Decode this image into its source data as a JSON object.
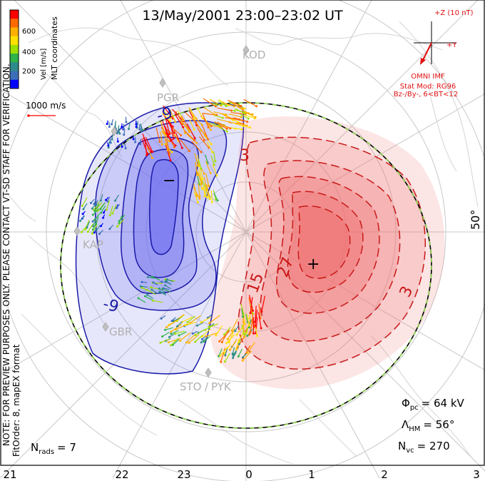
{
  "title": "13/May/2001 23:00–23:02 UT",
  "colorbar": {
    "label": "Vel [m/s]",
    "ticks": [
      "600",
      "400",
      "200"
    ],
    "colors": [
      "#ff0000",
      "#ff6a00",
      "#ffb000",
      "#ffe000",
      "#9ee000",
      "#2fb34a",
      "#2e8a8a",
      "#3d6fb8",
      "#0000ff"
    ]
  },
  "coordinate_label": "MLT coordinates",
  "scale_label": "1000 m/s",
  "side_note_1": "NOTE: FOR PREVIEW PURPOSES ONLY. PLEASE CONTACT VT-SD STAFF FOR VERIFICATION.",
  "side_note_2": "FitOrder: 8, mapEX format",
  "imf": {
    "z_label": "+Z (10 nT)",
    "y_label": "+Y",
    "source": "OMNI IMF",
    "model_1": "Stat Mod: RG96",
    "model_2": "Bz-/By-, 6<BT<12"
  },
  "stations": [
    {
      "name": "KOD"
    },
    {
      "name": "PGR"
    },
    {
      "name": "KAP"
    },
    {
      "name": "GBR"
    },
    {
      "name": "STO"
    },
    {
      "name": "PYK"
    }
  ],
  "contour_labels": {
    "neg_outer": "-9",
    "neg_lower": "-9",
    "neg_minus": "−",
    "pos_3a": "3",
    "pos_3b": "3",
    "pos_15": "15",
    "pos_27": "27",
    "pos_plus": "+"
  },
  "latitude_label": "50°",
  "stats": {
    "phi_label": "Φ",
    "phi_sub": "pc",
    "phi_value": "= 64 kV",
    "lambda_label": "Λ",
    "lambda_sub": "HM",
    "lambda_value": "= 56°",
    "nvc_label": "N",
    "nvc_sub": "vc",
    "nvc_value": "= 270",
    "nrads_label": "N",
    "nrads_sub": "rads",
    "nrads_value": "= 7"
  },
  "mlt_axis": [
    "21",
    "22",
    "23",
    "0",
    "1",
    "2",
    "3"
  ],
  "colors": {
    "negative_fill": "#6f6ff0",
    "negative_line": "#1a1aa8",
    "positive_fill": "#f07070",
    "positive_line": "#c81818",
    "grid": "#c8c8c8",
    "land": "#dcdcdc",
    "boundary_green": "#8ed64a",
    "imf_red": "#e01010"
  }
}
